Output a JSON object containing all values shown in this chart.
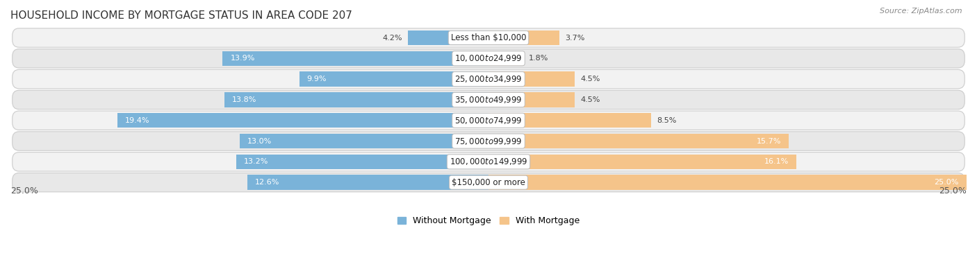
{
  "title": "HOUSEHOLD INCOME BY MORTGAGE STATUS IN AREA CODE 207",
  "source": "Source: ZipAtlas.com",
  "categories": [
    "Less than $10,000",
    "$10,000 to $24,999",
    "$25,000 to $34,999",
    "$35,000 to $49,999",
    "$50,000 to $74,999",
    "$75,000 to $99,999",
    "$100,000 to $149,999",
    "$150,000 or more"
  ],
  "without_mortgage": [
    4.2,
    13.9,
    9.9,
    13.8,
    19.4,
    13.0,
    13.2,
    12.6
  ],
  "with_mortgage": [
    3.7,
    1.8,
    4.5,
    4.5,
    8.5,
    15.7,
    16.1,
    25.0
  ],
  "color_without": "#7ab3d9",
  "color_with": "#f5c48a",
  "axis_label_left": "25.0%",
  "axis_label_right": "25.0%",
  "legend_without": "Without Mortgage",
  "legend_with": "With Mortgage",
  "title_fontsize": 11,
  "xlim": 25.0,
  "row_bg_light": "#f2f2f2",
  "row_bg_dark": "#e8e8e8"
}
